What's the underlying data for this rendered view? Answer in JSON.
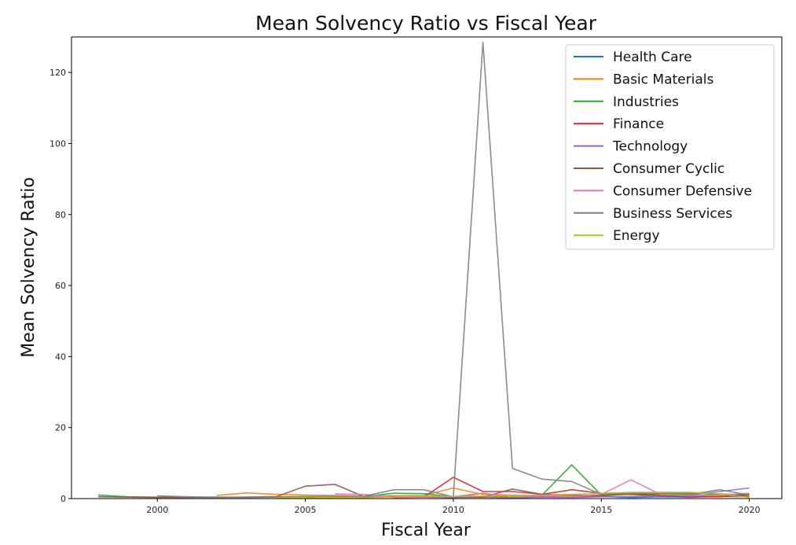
{
  "chart_data": {
    "type": "line",
    "title": "Mean Solvency Ratio vs Fiscal Year",
    "xlabel": "Fiscal Year",
    "ylabel": "Mean Solvency Ratio",
    "xlim": [
      1997.1,
      2021.1
    ],
    "ylim": [
      0,
      130
    ],
    "xticks": [
      2000,
      2005,
      2010,
      2015,
      2020
    ],
    "yticks": [
      0,
      20,
      40,
      60,
      80,
      100,
      120
    ],
    "grid": false,
    "legend_position": "top-right",
    "series": [
      {
        "name": "Health Care",
        "color": "#1f77b4",
        "x": [
          2006,
          2007,
          2008,
          2009,
          2010,
          2011,
          2012,
          2013,
          2014,
          2015,
          2016,
          2017,
          2018,
          2019,
          2020
        ],
        "y": [
          0.5,
          0.4,
          0.6,
          0.5,
          0.3,
          1.5,
          0.4,
          0.6,
          0.5,
          0.6,
          0.3,
          0.5,
          0.4,
          0.6,
          0.5
        ]
      },
      {
        "name": "Basic Materials",
        "color": "#ff7f0e",
        "x": [
          2002,
          2003,
          2004,
          2005,
          2006,
          2007,
          2008,
          2009,
          2010,
          2011,
          2012,
          2013,
          2014,
          2015,
          2016,
          2017,
          2018,
          2019,
          2020
        ],
        "y": [
          0.9,
          1.6,
          1.2,
          1.0,
          0.9,
          0.7,
          0.8,
          0.9,
          3.0,
          1.2,
          1.0,
          0.8,
          0.7,
          1.0,
          1.5,
          1.2,
          0.9,
          0.7,
          0.8
        ]
      },
      {
        "name": "Industries",
        "color": "#2ca02c",
        "x": [
          1998,
          1999,
          2000,
          2001,
          2002,
          2003,
          2004,
          2005,
          2006,
          2007,
          2008,
          2009,
          2010,
          2011,
          2012,
          2013,
          2014,
          2015,
          2016,
          2017,
          2018,
          2019,
          2020
        ],
        "y": [
          1.0,
          0.5,
          0.4,
          0.3,
          0.4,
          0.4,
          0.5,
          0.6,
          0.5,
          0.6,
          1.5,
          1.4,
          0.5,
          0.5,
          0.6,
          1.0,
          9.5,
          1.0,
          1.2,
          1.5,
          1.5,
          1.3,
          1.0
        ]
      },
      {
        "name": "Finance",
        "color": "#d62728",
        "x": [
          2008,
          2009,
          2010,
          2011,
          2012,
          2013,
          2014,
          2015,
          2016,
          2017,
          2018,
          2019,
          2020
        ],
        "y": [
          0.3,
          0.4,
          6.0,
          2.0,
          2.0,
          1.2,
          2.5,
          1.5,
          1.2,
          0.8,
          0.5,
          0.5,
          1.2
        ]
      },
      {
        "name": "Technology",
        "color": "#9467bd",
        "x": [
          2005,
          2006,
          2007,
          2008,
          2009,
          2010,
          2011,
          2012,
          2013,
          2014,
          2015,
          2016,
          2017,
          2018,
          2019,
          2020
        ],
        "y": [
          0.3,
          0.4,
          0.3,
          0.5,
          0.4,
          0.3,
          0.4,
          0.2,
          0.4,
          0.3,
          0.5,
          0.6,
          0.8,
          1.0,
          2.0,
          3.0
        ]
      },
      {
        "name": "Consumer Cyclic",
        "color": "#8c564b",
        "x": [
          1998,
          1999,
          2000,
          2001,
          2002,
          2003,
          2004,
          2005,
          2006,
          2007,
          2008,
          2009,
          2010,
          2011,
          2012,
          2013,
          2014,
          2015,
          2016,
          2017,
          2018,
          2019,
          2020
        ],
        "y": [
          0.5,
          0.4,
          0.3,
          0.4,
          0.3,
          0.4,
          0.5,
          3.5,
          4.0,
          0.5,
          0.6,
          0.5,
          0.5,
          0.4,
          2.7,
          1.2,
          1.0,
          0.8,
          1.3,
          1.0,
          0.7,
          1.2,
          0.5
        ]
      },
      {
        "name": "Consumer Defensive",
        "color": "#e377c2",
        "x": [
          2006,
          2007,
          2008,
          2009,
          2010,
          2011,
          2012,
          2013,
          2014,
          2015,
          2016,
          2017,
          2018,
          2019,
          2020
        ],
        "y": [
          1.3,
          1.2,
          0.3,
          0.5,
          0.6,
          1.5,
          0.5,
          0.8,
          0.6,
          1.2,
          5.3,
          1.2,
          0.8,
          1.0,
          1.5
        ]
      },
      {
        "name": "Business Services",
        "color": "#7f7f7f",
        "x": [
          2000,
          2001,
          2002,
          2003,
          2004,
          2005,
          2006,
          2007,
          2008,
          2009,
          2010,
          2011,
          2012,
          2013,
          2014,
          2015,
          2016,
          2017,
          2018,
          2019,
          2020
        ],
        "y": [
          0.8,
          0.5,
          0.4,
          0.3,
          0.4,
          0.5,
          0.6,
          0.7,
          2.5,
          2.5,
          0.5,
          128.5,
          8.5,
          5.5,
          4.8,
          1.2,
          1.5,
          1.5,
          1.2,
          2.5,
          1.0
        ]
      },
      {
        "name": "Energy",
        "color": "#bcbd22",
        "x": [
          2004,
          2005,
          2006,
          2007,
          2008,
          2009,
          2010,
          2011,
          2012,
          2013,
          2014,
          2015,
          2016,
          2017,
          2018,
          2019,
          2020
        ],
        "y": [
          0.2,
          0.3,
          0.3,
          0.4,
          0.5,
          0.8,
          0.6,
          0.7,
          0.8,
          1.0,
          1.2,
          1.5,
          1.8,
          1.8,
          1.8,
          1.3,
          0.3
        ]
      }
    ]
  }
}
